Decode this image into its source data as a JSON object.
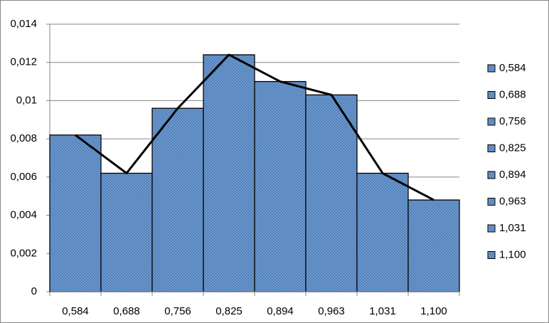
{
  "chart_data": {
    "type": "bar",
    "categories": [
      "0,584",
      "0,688",
      "0,756",
      "0,825",
      "0,894",
      "0,963",
      "1,031",
      "1,100"
    ],
    "values": [
      0.0082,
      0.0062,
      0.0096,
      0.0124,
      0.011,
      0.0103,
      0.0062,
      0.0048
    ],
    "color": "#4f81bd",
    "line_color": "#000000",
    "line_overlay": true,
    "ylim": [
      0,
      0.014
    ],
    "yticks": [
      0,
      {
        "value": 0.002,
        "label": "0,002"
      },
      {
        "value": 0.004,
        "label": "0,004"
      },
      {
        "value": 0.006,
        "label": "0,006"
      },
      {
        "value": 0.008,
        "label": "0,008"
      },
      {
        "value": 0.01,
        "label": "0,01"
      },
      {
        "value": 0.012,
        "label": "0,012"
      },
      {
        "value": 0.014,
        "label": "0,014"
      }
    ],
    "grid": true,
    "legend": "right"
  }
}
